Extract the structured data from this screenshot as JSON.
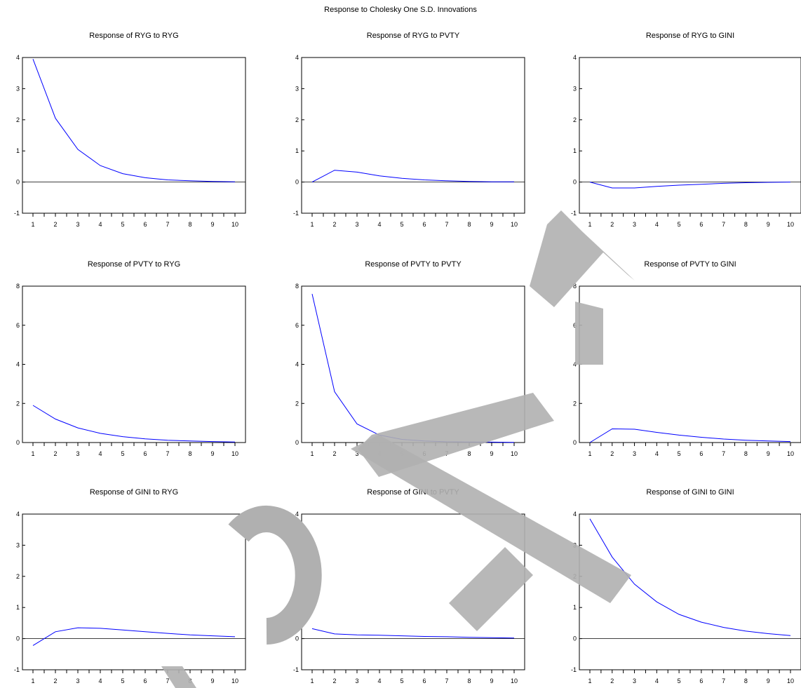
{
  "title": "Response to Cholesky One S.D. Innovations",
  "line_color": "#0000ff",
  "watermark_color": "#b0b0b0",
  "chart_data": [
    {
      "type": "line",
      "title": "Response of RYG to RYG",
      "x": [
        1,
        2,
        3,
        4,
        5,
        6,
        7,
        8,
        9,
        10
      ],
      "ylim": [
        -1,
        4
      ],
      "yticks": [
        -1,
        0,
        1,
        2,
        3,
        4
      ],
      "values": [
        3.95,
        2.05,
        1.05,
        0.53,
        0.27,
        0.14,
        0.07,
        0.04,
        0.02,
        0.01
      ]
    },
    {
      "type": "line",
      "title": "Response of RYG to PVTY",
      "x": [
        1,
        2,
        3,
        4,
        5,
        6,
        7,
        8,
        9,
        10
      ],
      "ylim": [
        -1,
        4
      ],
      "yticks": [
        -1,
        0,
        1,
        2,
        3,
        4
      ],
      "values": [
        0.0,
        0.38,
        0.32,
        0.2,
        0.12,
        0.07,
        0.04,
        0.02,
        0.01,
        0.01
      ]
    },
    {
      "type": "line",
      "title": "Response of RYG to GINI",
      "x": [
        1,
        2,
        3,
        4,
        5,
        6,
        7,
        8,
        9,
        10
      ],
      "ylim": [
        -1,
        4
      ],
      "yticks": [
        -1,
        0,
        1,
        2,
        3,
        4
      ],
      "values": [
        0.0,
        -0.19,
        -0.19,
        -0.14,
        -0.1,
        -0.07,
        -0.04,
        -0.02,
        -0.01,
        0.0
      ]
    },
    {
      "type": "line",
      "title": "Response of PVTY to RYG",
      "x": [
        1,
        2,
        3,
        4,
        5,
        6,
        7,
        8,
        9,
        10
      ],
      "ylim": [
        0,
        8
      ],
      "yticks": [
        0,
        2,
        4,
        6,
        8
      ],
      "values": [
        1.9,
        1.2,
        0.75,
        0.47,
        0.3,
        0.19,
        0.12,
        0.08,
        0.05,
        0.03
      ]
    },
    {
      "type": "line",
      "title": "Response of PVTY to PVTY",
      "x": [
        1,
        2,
        3,
        4,
        5,
        6,
        7,
        8,
        9,
        10
      ],
      "ylim": [
        0,
        8
      ],
      "yticks": [
        0,
        2,
        4,
        6,
        8
      ],
      "values": [
        7.6,
        2.6,
        0.95,
        0.38,
        0.16,
        0.08,
        0.04,
        0.03,
        0.02,
        0.01
      ]
    },
    {
      "type": "line",
      "title": "Response of PVTY to GINI",
      "x": [
        1,
        2,
        3,
        4,
        5,
        6,
        7,
        8,
        9,
        10
      ],
      "ylim": [
        0,
        8
      ],
      "yticks": [
        0,
        2,
        4,
        6,
        8
      ],
      "values": [
        0.0,
        0.7,
        0.68,
        0.52,
        0.38,
        0.27,
        0.18,
        0.12,
        0.08,
        0.05
      ]
    },
    {
      "type": "line",
      "title": "Response of GINI to RYG",
      "x": [
        1,
        2,
        3,
        4,
        5,
        6,
        7,
        8,
        9,
        10
      ],
      "ylim": [
        -1,
        4
      ],
      "yticks": [
        -1,
        0,
        1,
        2,
        3,
        4
      ],
      "values": [
        -0.22,
        0.22,
        0.35,
        0.33,
        0.28,
        0.22,
        0.17,
        0.12,
        0.09,
        0.06
      ]
    },
    {
      "type": "line",
      "title": "Response of GINI to PVTY",
      "x": [
        1,
        2,
        3,
        4,
        5,
        6,
        7,
        8,
        9,
        10
      ],
      "ylim": [
        -1,
        4
      ],
      "yticks": [
        -1,
        0,
        1,
        2,
        3,
        4
      ],
      "values": [
        0.32,
        0.15,
        0.12,
        0.11,
        0.09,
        0.07,
        0.06,
        0.04,
        0.03,
        0.02
      ]
    },
    {
      "type": "line",
      "title": "Response of GINI to GINI",
      "x": [
        1,
        2,
        3,
        4,
        5,
        6,
        7,
        8,
        9,
        10
      ],
      "ylim": [
        -1,
        4
      ],
      "yticks": [
        -1,
        0,
        1,
        2,
        3,
        4
      ],
      "values": [
        3.85,
        2.62,
        1.75,
        1.18,
        0.78,
        0.53,
        0.36,
        0.24,
        0.16,
        0.1
      ]
    }
  ]
}
